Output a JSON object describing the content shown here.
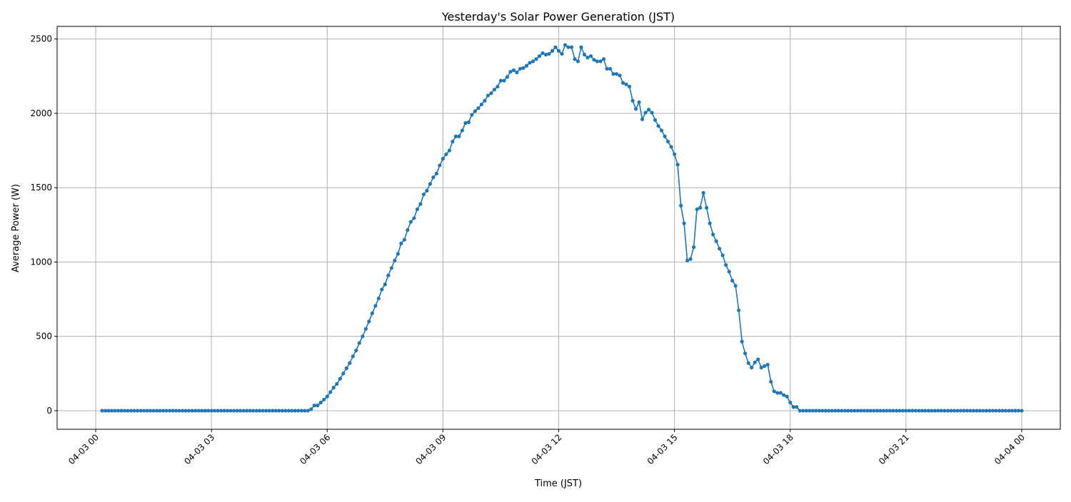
{
  "chart_data": {
    "type": "line",
    "title": "Yesterday's Solar Power Generation (JST)",
    "xlabel": "Time (JST)",
    "ylabel": "Average Power (W)",
    "date": "04-03",
    "x_interval_minutes": 5,
    "x": [
      "00:10",
      "00:15",
      "00:20",
      "00:25",
      "00:30",
      "00:35",
      "00:40",
      "00:45",
      "00:50",
      "00:55",
      "01:00",
      "01:05",
      "01:10",
      "01:15",
      "01:20",
      "01:25",
      "01:30",
      "01:35",
      "01:40",
      "01:45",
      "01:50",
      "01:55",
      "02:00",
      "02:05",
      "02:10",
      "02:15",
      "02:20",
      "02:25",
      "02:30",
      "02:35",
      "02:40",
      "02:45",
      "02:50",
      "02:55",
      "03:00",
      "03:05",
      "03:10",
      "03:15",
      "03:20",
      "03:25",
      "03:30",
      "03:35",
      "03:40",
      "03:45",
      "03:50",
      "03:55",
      "04:00",
      "04:05",
      "04:10",
      "04:15",
      "04:20",
      "04:25",
      "04:30",
      "04:35",
      "04:40",
      "04:45",
      "04:50",
      "04:55",
      "05:00",
      "05:05",
      "05:10",
      "05:15",
      "05:20",
      "05:25",
      "05:30",
      "05:35",
      "05:40",
      "05:45",
      "05:50",
      "05:55",
      "06:00",
      "06:05",
      "06:10",
      "06:15",
      "06:20",
      "06:25",
      "06:30",
      "06:35",
      "06:40",
      "06:45",
      "06:50",
      "06:55",
      "07:00",
      "07:05",
      "07:10",
      "07:15",
      "07:20",
      "07:25",
      "07:30",
      "07:35",
      "07:40",
      "07:45",
      "07:50",
      "07:55",
      "08:00",
      "08:05",
      "08:10",
      "08:15",
      "08:20",
      "08:25",
      "08:30",
      "08:35",
      "08:40",
      "08:45",
      "08:50",
      "08:55",
      "09:00",
      "09:05",
      "09:10",
      "09:15",
      "09:20",
      "09:25",
      "09:30",
      "09:35",
      "09:40",
      "09:45",
      "09:50",
      "09:55",
      "10:00",
      "10:05",
      "10:10",
      "10:15",
      "10:20",
      "10:25",
      "10:30",
      "10:35",
      "10:40",
      "10:45",
      "10:50",
      "10:55",
      "11:00",
      "11:05",
      "11:10",
      "11:15",
      "11:20",
      "11:25",
      "11:30",
      "11:35",
      "11:40",
      "11:45",
      "11:50",
      "11:55",
      "12:00",
      "12:05",
      "12:10",
      "12:15",
      "12:20",
      "12:25",
      "12:30",
      "12:35",
      "12:40",
      "12:45",
      "12:50",
      "12:55",
      "13:00",
      "13:05",
      "13:10",
      "13:15",
      "13:20",
      "13:25",
      "13:30",
      "13:35",
      "13:40",
      "13:45",
      "13:50",
      "13:55",
      "14:00",
      "14:05",
      "14:10",
      "14:15",
      "14:20",
      "14:25",
      "14:30",
      "14:35",
      "14:40",
      "14:45",
      "14:50",
      "14:55",
      "15:00",
      "15:05",
      "15:10",
      "15:15",
      "15:20",
      "15:25",
      "15:30",
      "15:35",
      "15:40",
      "15:45",
      "15:50",
      "15:55",
      "16:00",
      "16:05",
      "16:10",
      "16:15",
      "16:20",
      "16:25",
      "16:30",
      "16:35",
      "16:40",
      "16:45",
      "16:50",
      "16:55",
      "17:00",
      "17:05",
      "17:10",
      "17:15",
      "17:20",
      "17:25",
      "17:30",
      "17:35",
      "17:40",
      "17:45",
      "17:50",
      "17:55",
      "18:00",
      "18:05",
      "18:10",
      "18:15",
      "18:20",
      "18:25",
      "18:30",
      "18:35",
      "18:40",
      "18:45",
      "18:50",
      "18:55",
      "19:00",
      "19:05",
      "19:10",
      "19:15",
      "19:20",
      "19:25",
      "19:30",
      "19:35",
      "19:40",
      "19:45",
      "19:50",
      "19:55",
      "20:00",
      "20:05",
      "20:10",
      "20:15",
      "20:20",
      "20:25",
      "20:30",
      "20:35",
      "20:40",
      "20:45",
      "20:50",
      "20:55",
      "21:00",
      "21:05",
      "21:10",
      "21:15",
      "21:20",
      "21:25",
      "21:30",
      "21:35",
      "21:40",
      "21:45",
      "21:50",
      "21:55",
      "22:00",
      "22:05",
      "22:10",
      "22:15",
      "22:20",
      "22:25",
      "22:30",
      "22:35",
      "22:40",
      "22:45",
      "22:50",
      "22:55",
      "23:00",
      "23:05",
      "23:10",
      "23:15",
      "23:20",
      "23:25",
      "23:30",
      "23:35",
      "23:40",
      "23:45",
      "23:50",
      "23:55",
      "24:00"
    ],
    "values": [
      0,
      0,
      0,
      0,
      0,
      0,
      0,
      0,
      0,
      0,
      0,
      0,
      0,
      0,
      0,
      0,
      0,
      0,
      0,
      0,
      0,
      0,
      0,
      0,
      0,
      0,
      0,
      0,
      0,
      0,
      0,
      0,
      0,
      0,
      0,
      0,
      0,
      0,
      0,
      0,
      0,
      0,
      0,
      0,
      0,
      0,
      0,
      0,
      0,
      0,
      0,
      0,
      0,
      0,
      0,
      0,
      0,
      0,
      0,
      0,
      0,
      0,
      0,
      0,
      0,
      10,
      35,
      35,
      55,
      75,
      95,
      125,
      155,
      180,
      215,
      250,
      285,
      320,
      365,
      405,
      455,
      500,
      550,
      600,
      655,
      705,
      755,
      815,
      850,
      910,
      960,
      1010,
      1055,
      1125,
      1150,
      1215,
      1270,
      1295,
      1355,
      1390,
      1455,
      1480,
      1525,
      1570,
      1595,
      1650,
      1695,
      1725,
      1750,
      1810,
      1845,
      1845,
      1885,
      1935,
      1940,
      1990,
      2015,
      2035,
      2060,
      2085,
      2120,
      2135,
      2160,
      2180,
      2220,
      2220,
      2245,
      2280,
      2290,
      2275,
      2300,
      2305,
      2320,
      2340,
      2350,
      2365,
      2385,
      2405,
      2395,
      2400,
      2420,
      2445,
      2420,
      2400,
      2460,
      2445,
      2445,
      2365,
      2350,
      2445,
      2395,
      2375,
      2385,
      2360,
      2350,
      2350,
      2365,
      2300,
      2300,
      2265,
      2265,
      2255,
      2205,
      2195,
      2180,
      2085,
      2030,
      2075,
      1960,
      2005,
      2025,
      2005,
      1955,
      1915,
      1885,
      1845,
      1810,
      1775,
      1725,
      1655,
      1380,
      1260,
      1010,
      1020,
      1100,
      1355,
      1365,
      1465,
      1365,
      1260,
      1185,
      1140,
      1090,
      1045,
      980,
      935,
      875,
      840,
      675,
      465,
      385,
      320,
      290,
      325,
      345,
      290,
      300,
      310,
      195,
      130,
      120,
      120,
      105,
      95,
      55,
      25,
      25,
      0,
      0,
      0,
      0,
      0,
      0,
      0,
      0,
      0,
      0,
      0,
      0,
      0,
      0,
      0,
      0,
      0,
      0,
      0,
      0,
      0,
      0,
      0,
      0,
      0,
      0,
      0,
      0,
      0,
      0,
      0,
      0,
      0,
      0,
      0,
      0,
      0,
      0,
      0,
      0,
      0,
      0,
      0,
      0,
      0,
      0,
      0,
      0,
      0,
      0,
      0,
      0,
      0,
      0,
      0,
      0,
      0,
      0,
      0,
      0,
      0,
      0,
      0,
      0,
      0,
      0,
      0,
      0,
      0,
      0
    ],
    "x_ticks": [
      {
        "hour": 0,
        "label": "04-03 00"
      },
      {
        "hour": 3,
        "label": "04-03 03"
      },
      {
        "hour": 6,
        "label": "04-03 06"
      },
      {
        "hour": 9,
        "label": "04-03 09"
      },
      {
        "hour": 12,
        "label": "04-03 12"
      },
      {
        "hour": 15,
        "label": "04-03 15"
      },
      {
        "hour": 18,
        "label": "04-03 18"
      },
      {
        "hour": 21,
        "label": "04-03 21"
      },
      {
        "hour": 24,
        "label": "04-04 00"
      }
    ],
    "y_ticks": [
      0,
      500,
      1000,
      1500,
      2000,
      2500
    ],
    "xlim_hours": [
      -1.0,
      25.0
    ],
    "ylim": [
      -125,
      2585
    ],
    "grid": true,
    "marker": "circle",
    "color": "#1f77b4",
    "grid_color": "#b0b0b0"
  }
}
